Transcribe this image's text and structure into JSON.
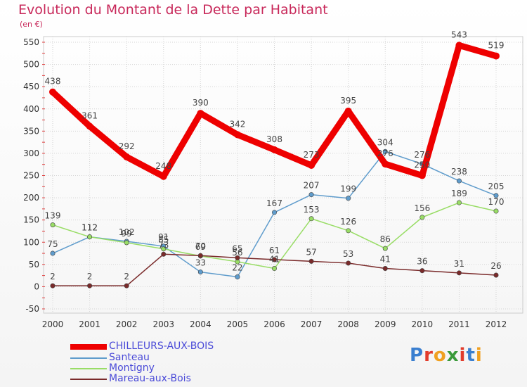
{
  "chart_data": {
    "type": "line",
    "title": "Evolution du Montant de la Dette par Habitant",
    "subtitle": "(en €)",
    "x": [
      "2000",
      "2001",
      "2002",
      "2003",
      "2004",
      "2005",
      "2006",
      "2007",
      "2008",
      "2009",
      "2010",
      "2011",
      "2012"
    ],
    "ylim": [
      -50,
      550
    ],
    "yticks": [
      -50,
      0,
      50,
      100,
      150,
      200,
      250,
      300,
      350,
      400,
      450,
      500,
      550
    ],
    "grid": true,
    "legend_position": "bottom-left",
    "series": [
      {
        "name": "CHILLEURS-AUX-BOIS",
        "color": "#ee0000",
        "values": [
          438,
          361,
          292,
          248,
          390,
          342,
          308,
          273,
          395,
          276,
          250,
          543,
          519
        ]
      },
      {
        "name": "Santeau",
        "color": "#5f9ccc",
        "values": [
          75,
          112,
          102,
          91,
          33,
          22,
          167,
          207,
          199,
          304,
          276,
          238,
          205
        ]
      },
      {
        "name": "Montigny",
        "color": "#99dd66",
        "values": [
          139,
          112,
          99,
          85,
          69,
          56,
          41,
          153,
          126,
          86,
          156,
          189,
          170
        ]
      },
      {
        "name": "Mareau-aux-Bois",
        "color": "#7a2a2a",
        "values": [
          2,
          2,
          2,
          73,
          70,
          65,
          61,
          57,
          53,
          41,
          36,
          31,
          26
        ]
      }
    ]
  },
  "logo": {
    "text": "Proxiti"
  }
}
